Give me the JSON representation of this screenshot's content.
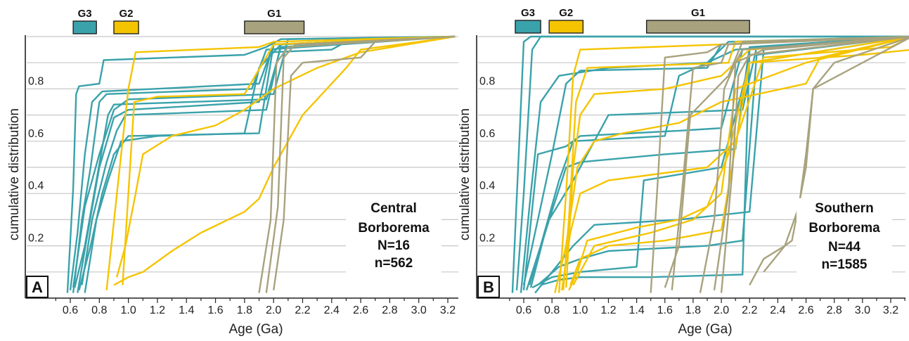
{
  "colors": {
    "G1": "#a8a27e",
    "G2": "#f5c400",
    "G3": "#3aa2ab",
    "grid": "#c8c8c8"
  },
  "chart_data": [
    {
      "type": "line",
      "panel_label": "A",
      "xlabel": "Age (Ga)",
      "ylabel": "cumulative distribution",
      "xlim": [
        0.45,
        3.3
      ],
      "ylim": [
        0,
        1
      ],
      "x_ticks": [
        "0.6",
        "0.8",
        "1.0",
        "1.2",
        "1.4",
        "1.6",
        "1.8",
        "2.0",
        "2.2",
        "2.4",
        "2.6",
        "2.8",
        "3.0",
        "3.2"
      ],
      "y_ticks": [
        "0.2",
        "0.4",
        "0.6",
        "0.8"
      ],
      "annotation": [
        "Central",
        "Borborema",
        "N=16",
        "n=562"
      ],
      "group_bars": [
        {
          "name": "G3",
          "from": 0.62,
          "to": 0.78,
          "color_key": "G3"
        },
        {
          "name": "G2",
          "from": 0.9,
          "to": 1.07,
          "color_key": "G2"
        },
        {
          "name": "G1",
          "from": 1.8,
          "to": 2.21,
          "color_key": "G1"
        }
      ],
      "series": [
        {
          "group": "G3",
          "x": [
            0.58,
            0.62,
            0.64,
            0.66,
            0.8,
            0.83,
            1.8,
            1.95,
            2.05,
            3.25
          ],
          "y": [
            0.02,
            0.42,
            0.78,
            0.81,
            0.82,
            0.91,
            0.93,
            0.96,
            0.99,
            1
          ]
        },
        {
          "group": "G3",
          "x": [
            0.6,
            0.65,
            0.7,
            0.75,
            0.82,
            1.9,
            2.0,
            3.25
          ],
          "y": [
            0.03,
            0.25,
            0.55,
            0.75,
            0.79,
            0.82,
            0.97,
            1
          ]
        },
        {
          "group": "G3",
          "x": [
            0.62,
            0.68,
            0.74,
            0.8,
            0.85,
            1.85,
            1.95,
            3.25
          ],
          "y": [
            0.02,
            0.3,
            0.5,
            0.75,
            0.78,
            0.8,
            0.95,
            1
          ]
        },
        {
          "group": "G3",
          "x": [
            0.63,
            0.7,
            0.78,
            0.86,
            0.9,
            1.95,
            2.05,
            3.25
          ],
          "y": [
            0.04,
            0.2,
            0.45,
            0.7,
            0.74,
            0.76,
            0.96,
            1
          ]
        },
        {
          "group": "G3",
          "x": [
            0.65,
            0.72,
            0.8,
            0.9,
            1.0,
            1.9,
            1.98,
            2.4,
            2.5,
            3.25
          ],
          "y": [
            0.02,
            0.25,
            0.5,
            0.69,
            0.72,
            0.75,
            0.94,
            0.95,
            0.98,
            1
          ]
        },
        {
          "group": "G3",
          "x": [
            0.66,
            0.74,
            0.82,
            0.9,
            1.0,
            1.9,
            2.0,
            3.25
          ],
          "y": [
            0.03,
            0.2,
            0.4,
            0.55,
            0.62,
            0.63,
            0.97,
            1
          ]
        },
        {
          "group": "G3",
          "x": [
            0.68,
            0.75,
            0.85,
            0.92,
            0.98,
            1.95,
            2.05,
            3.25
          ],
          "y": [
            0.05,
            0.3,
            0.52,
            0.64,
            0.7,
            0.72,
            0.97,
            1
          ]
        },
        {
          "group": "G3",
          "x": [
            0.7,
            0.78,
            0.86,
            0.95,
            1.2,
            1.8,
            1.9,
            2.05,
            3.25
          ],
          "y": [
            0.02,
            0.3,
            0.45,
            0.6,
            0.62,
            0.63,
            0.88,
            0.97,
            1
          ]
        },
        {
          "group": "G3",
          "x": [
            0.62,
            0.7,
            0.8,
            0.9,
            1.0,
            2.0,
            2.1,
            3.25
          ],
          "y": [
            0.04,
            0.35,
            0.55,
            0.72,
            0.76,
            0.78,
            0.99,
            1
          ]
        },
        {
          "group": "G2",
          "x": [
            0.85,
            0.95,
            1.0,
            1.05,
            1.9,
            2.0,
            3.25
          ],
          "y": [
            0.03,
            0.55,
            0.8,
            0.94,
            0.96,
            0.98,
            1
          ]
        },
        {
          "group": "G2",
          "x": [
            0.92,
            0.98,
            1.05,
            1.1,
            1.3,
            1.6,
            1.8,
            2.0,
            2.3,
            2.6,
            3.25
          ],
          "y": [
            0.08,
            0.2,
            0.4,
            0.55,
            0.62,
            0.66,
            0.72,
            0.8,
            0.88,
            0.94,
            1
          ]
        },
        {
          "group": "G2",
          "x": [
            0.9,
            1.0,
            1.1,
            1.3,
            1.5,
            1.8,
            1.9,
            2.0,
            2.2,
            2.5,
            2.6,
            3.0,
            3.25
          ],
          "y": [
            0.05,
            0.08,
            0.1,
            0.18,
            0.25,
            0.33,
            0.38,
            0.5,
            0.7,
            0.88,
            0.95,
            0.98,
            1
          ]
        },
        {
          "group": "G2",
          "x": [
            0.96,
            1.0,
            1.04,
            1.2,
            1.8,
            2.0,
            3.25
          ],
          "y": [
            0.05,
            0.4,
            0.75,
            0.77,
            0.78,
            0.97,
            1
          ]
        },
        {
          "group": "G1",
          "x": [
            1.9,
            1.98,
            2.02,
            2.1,
            3.25
          ],
          "y": [
            0.02,
            0.3,
            0.9,
            0.96,
            1
          ]
        },
        {
          "group": "G1",
          "x": [
            1.95,
            2.03,
            2.07,
            2.15,
            3.25
          ],
          "y": [
            0.02,
            0.35,
            0.92,
            0.97,
            1
          ]
        },
        {
          "group": "G1",
          "x": [
            2.0,
            2.07,
            2.12,
            2.2,
            2.6,
            2.7,
            3.25
          ],
          "y": [
            0.03,
            0.3,
            0.85,
            0.9,
            0.92,
            0.98,
            1
          ]
        }
      ]
    },
    {
      "type": "line",
      "panel_label": "B",
      "xlabel": "Age (Ga)",
      "ylabel": "cumulative distribution",
      "xlim": [
        0.45,
        3.35
      ],
      "ylim": [
        0,
        1
      ],
      "x_ticks": [
        "0.6",
        "0.8",
        "1.0",
        "1.2",
        "1.4",
        "1.6",
        "1.8",
        "2.0",
        "2.2",
        "2.4",
        "2.6",
        "2.8",
        "3.0",
        "3.2"
      ],
      "y_ticks": [
        "0.2",
        "0.4",
        "0.6",
        "0.8"
      ],
      "annotation": [
        "Southern",
        "Borborema",
        "N=44",
        "n=1585"
      ],
      "group_bars": [
        {
          "name": "G3",
          "from": 0.54,
          "to": 0.72,
          "color_key": "G3"
        },
        {
          "name": "G2",
          "from": 0.78,
          "to": 1.02,
          "color_key": "G2"
        },
        {
          "name": "G1",
          "from": 1.47,
          "to": 2.2,
          "color_key": "G1"
        }
      ],
      "series": [
        {
          "group": "G3",
          "x": [
            0.52,
            0.56,
            0.6,
            0.65,
            3.35
          ],
          "y": [
            0.02,
            0.5,
            0.98,
            1,
            1
          ]
        },
        {
          "group": "G3",
          "x": [
            0.55,
            0.6,
            0.66,
            0.72,
            3.35
          ],
          "y": [
            0.03,
            0.4,
            0.95,
            1,
            1
          ]
        },
        {
          "group": "G3",
          "x": [
            0.58,
            0.65,
            0.72,
            0.85,
            1.2,
            1.9,
            2.05,
            3.35
          ],
          "y": [
            0.02,
            0.4,
            0.75,
            0.85,
            0.88,
            0.9,
            0.98,
            1
          ]
        },
        {
          "group": "G3",
          "x": [
            0.6,
            0.7,
            0.8,
            0.9,
            1.0,
            1.9,
            2.0,
            3.35
          ],
          "y": [
            0.05,
            0.3,
            0.55,
            0.82,
            0.87,
            0.88,
            0.97,
            1
          ]
        },
        {
          "group": "G3",
          "x": [
            0.62,
            0.72,
            0.85,
            0.95,
            1.6,
            1.7,
            2.1,
            3.35
          ],
          "y": [
            0.03,
            0.2,
            0.45,
            0.6,
            0.62,
            0.85,
            0.95,
            1
          ]
        },
        {
          "group": "G3",
          "x": [
            0.65,
            0.75,
            0.9,
            1.0,
            1.6,
            2.1,
            2.2,
            3.35
          ],
          "y": [
            0.04,
            0.25,
            0.5,
            0.52,
            0.55,
            0.57,
            0.96,
            1
          ]
        },
        {
          "group": "G3",
          "x": [
            0.68,
            0.8,
            0.95,
            1.1,
            1.7,
            2.2,
            2.3,
            3.35
          ],
          "y": [
            0.02,
            0.1,
            0.2,
            0.28,
            0.3,
            0.33,
            0.95,
            1
          ]
        },
        {
          "group": "G3",
          "x": [
            0.7,
            0.85,
            1.0,
            1.2,
            1.9,
            2.15,
            2.25,
            3.35
          ],
          "y": [
            0.05,
            0.12,
            0.15,
            0.18,
            0.2,
            0.22,
            0.93,
            1
          ]
        },
        {
          "group": "G3",
          "x": [
            0.6,
            0.7,
            0.9,
            1.0,
            1.7,
            2.0,
            2.15,
            3.35
          ],
          "y": [
            0.03,
            0.55,
            0.58,
            0.62,
            0.64,
            0.65,
            0.95,
            1
          ]
        },
        {
          "group": "G3",
          "x": [
            0.64,
            0.78,
            0.95,
            1.2,
            2.15,
            2.25,
            3.35
          ],
          "y": [
            0.05,
            0.3,
            0.45,
            0.7,
            0.72,
            0.96,
            1
          ]
        },
        {
          "group": "G3",
          "x": [
            0.66,
            0.8,
            1.0,
            1.4,
            1.45,
            2.0,
            2.2,
            3.35
          ],
          "y": [
            0.04,
            0.08,
            0.1,
            0.12,
            0.45,
            0.5,
            0.9,
            1
          ]
        },
        {
          "group": "G3",
          "x": [
            0.72,
            0.85,
            1.0,
            1.5,
            2.15,
            2.2,
            3.35
          ],
          "y": [
            0.05,
            0.07,
            0.08,
            0.08,
            0.09,
            0.95,
            1
          ]
        },
        {
          "group": "G2",
          "x": [
            0.85,
            0.9,
            0.95,
            1.0,
            2.0,
            3.35
          ],
          "y": [
            0.02,
            0.4,
            0.85,
            0.95,
            0.97,
            1
          ]
        },
        {
          "group": "G2",
          "x": [
            0.88,
            0.92,
            0.97,
            1.05,
            2.05,
            2.1,
            3.35
          ],
          "y": [
            0.03,
            0.3,
            0.75,
            0.88,
            0.9,
            0.98,
            1
          ]
        },
        {
          "group": "G2",
          "x": [
            0.9,
            0.95,
            1.0,
            1.1,
            1.6,
            2.0,
            2.2,
            3.35
          ],
          "y": [
            0.04,
            0.5,
            0.7,
            0.78,
            0.8,
            0.85,
            0.95,
            1
          ]
        },
        {
          "group": "G2",
          "x": [
            0.82,
            0.9,
            0.98,
            1.1,
            1.3,
            1.7,
            2.0,
            2.6,
            2.7,
            3.35
          ],
          "y": [
            0.02,
            0.2,
            0.5,
            0.6,
            0.63,
            0.67,
            0.75,
            0.82,
            0.92,
            1
          ]
        },
        {
          "group": "G2",
          "x": [
            0.95,
            1.0,
            1.1,
            1.5,
            1.8,
            2.0,
            2.1,
            2.6,
            3.35
          ],
          "y": [
            0.05,
            0.1,
            0.2,
            0.25,
            0.3,
            0.4,
            0.8,
            0.9,
            1
          ]
        },
        {
          "group": "G2",
          "x": [
            0.92,
            0.98,
            1.05,
            1.4,
            1.7,
            1.9,
            2.05,
            2.2,
            3.35
          ],
          "y": [
            0.03,
            0.1,
            0.22,
            0.27,
            0.3,
            0.35,
            0.55,
            0.9,
            1
          ]
        },
        {
          "group": "G2",
          "x": [
            0.87,
            0.93,
            1.0,
            1.2,
            1.9,
            2.1,
            2.3,
            3.2,
            3.35
          ],
          "y": [
            0.03,
            0.25,
            0.4,
            0.45,
            0.5,
            0.6,
            0.92,
            0.96,
            1
          ]
        },
        {
          "group": "G2",
          "x": [
            0.93,
            1.0,
            1.2,
            1.6,
            2.0,
            2.2,
            3.0,
            3.35
          ],
          "y": [
            0.05,
            0.15,
            0.2,
            0.22,
            0.26,
            0.9,
            0.93,
            0.95
          ]
        },
        {
          "group": "G1",
          "x": [
            1.5,
            1.55,
            1.6,
            1.9,
            2.0,
            3.35
          ],
          "y": [
            0.02,
            0.45,
            0.92,
            0.94,
            0.97,
            1
          ]
        },
        {
          "group": "G1",
          "x": [
            1.65,
            1.72,
            1.8,
            2.0,
            2.05,
            3.35
          ],
          "y": [
            0.03,
            0.4,
            0.88,
            0.9,
            0.97,
            1
          ]
        },
        {
          "group": "G1",
          "x": [
            1.85,
            1.95,
            2.02,
            2.1,
            2.3,
            3.35
          ],
          "y": [
            0.02,
            0.3,
            0.8,
            0.9,
            0.95,
            1
          ]
        },
        {
          "group": "G1",
          "x": [
            1.95,
            2.05,
            2.1,
            2.15,
            3.35
          ],
          "y": [
            0.03,
            0.4,
            0.9,
            0.95,
            1
          ]
        },
        {
          "group": "G1",
          "x": [
            2.0,
            2.08,
            2.12,
            2.2,
            3.35
          ],
          "y": [
            0.02,
            0.5,
            0.85,
            0.93,
            1
          ]
        },
        {
          "group": "G1",
          "x": [
            1.6,
            1.7,
            1.78,
            2.05,
            2.15,
            3.35
          ],
          "y": [
            0.04,
            0.2,
            0.7,
            0.85,
            0.98,
            1
          ]
        },
        {
          "group": "G1",
          "x": [
            2.2,
            2.3,
            2.45,
            2.5,
            2.6,
            2.65,
            3.35
          ],
          "y": [
            0.05,
            0.15,
            0.2,
            0.22,
            0.5,
            0.8,
            1
          ]
        },
        {
          "group": "G1",
          "x": [
            2.3,
            2.45,
            2.55,
            2.6,
            2.65,
            2.8,
            3.35
          ],
          "y": [
            0.1,
            0.2,
            0.35,
            0.55,
            0.8,
            0.9,
            1
          ]
        }
      ]
    }
  ]
}
